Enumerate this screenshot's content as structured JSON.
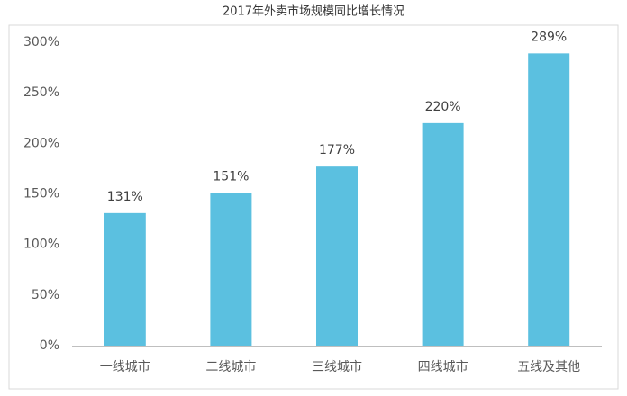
{
  "chart_data": {
    "type": "bar",
    "title": "2017年外卖市场规模同比增长情况",
    "categories": [
      "一线城市",
      "二线城市",
      "三线城市",
      "四线城市",
      "五线及其他"
    ],
    "values": [
      131,
      151,
      177,
      220,
      289
    ],
    "value_labels": [
      "131%",
      "151%",
      "177%",
      "220%",
      "289%"
    ],
    "color": "#5bc0e0",
    "ylim": [
      0,
      300
    ],
    "yticks": [
      {
        "value": 0,
        "label": "0%"
      },
      {
        "value": 50,
        "label": "50%"
      },
      {
        "value": 100,
        "label": "100%"
      },
      {
        "value": 150,
        "label": "150%"
      },
      {
        "value": 200,
        "label": "200%"
      },
      {
        "value": 250,
        "label": "250%"
      },
      {
        "value": 300,
        "label": "300%"
      }
    ],
    "grid": false
  }
}
